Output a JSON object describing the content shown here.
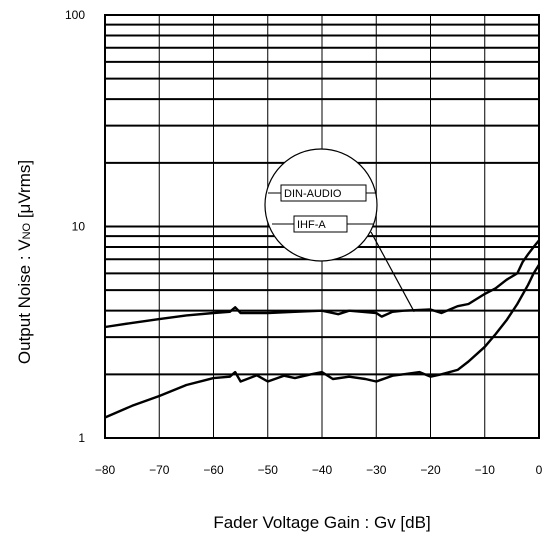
{
  "chart_data": {
    "type": "line",
    "title": "",
    "xlabel": "Fader Voltage Gain : Gv [dB]",
    "ylabel": {
      "prefix": "Output Noise : V",
      "subscript": "NO",
      "suffix": " [μVrms]"
    },
    "x_ticks": [
      "−80",
      "−70",
      "−60",
      "−50",
      "−40",
      "−30",
      "−20",
      "−10",
      "0"
    ],
    "y_ticks": [
      "1",
      "10",
      "100"
    ],
    "xlim": [
      -80,
      0
    ],
    "ylim": [
      1,
      100
    ],
    "y_scale": "log",
    "grid": true,
    "legend_position": "inline-callout",
    "series": [
      {
        "name": "DIN-AUDIO",
        "x": [
          -80,
          -75,
          -70,
          -65,
          -60,
          -57,
          -56,
          -55,
          -50,
          -45,
          -40,
          -37,
          -35,
          -30,
          -29,
          -27,
          -25,
          -20,
          -18,
          -15,
          -13,
          -10,
          -8,
          -6,
          -4,
          -3,
          -2,
          -1,
          0
        ],
        "y": [
          3.35,
          3.5,
          3.65,
          3.8,
          3.9,
          3.95,
          4.15,
          3.9,
          3.9,
          3.95,
          4.0,
          3.85,
          4.0,
          3.9,
          3.75,
          3.95,
          4.0,
          4.05,
          3.9,
          4.2,
          4.3,
          4.8,
          5.1,
          5.6,
          6.0,
          6.8,
          7.4,
          8.0,
          8.6
        ]
      },
      {
        "name": "IHF-A",
        "x": [
          -80,
          -75,
          -70,
          -65,
          -60,
          -57,
          -56,
          -55,
          -52,
          -50,
          -47,
          -45,
          -42,
          -40,
          -38,
          -35,
          -32,
          -30,
          -27,
          -25,
          -22,
          -20,
          -18,
          -15,
          -13,
          -10,
          -8,
          -6,
          -4,
          -2,
          -1,
          0
        ],
        "y": [
          1.25,
          1.42,
          1.58,
          1.78,
          1.92,
          1.95,
          2.05,
          1.85,
          1.98,
          1.85,
          1.97,
          1.92,
          2.0,
          2.05,
          1.9,
          1.95,
          1.9,
          1.85,
          1.97,
          2.0,
          2.05,
          1.95,
          2.0,
          2.1,
          2.3,
          2.7,
          3.1,
          3.6,
          4.3,
          5.3,
          6.0,
          6.6
        ]
      }
    ]
  }
}
